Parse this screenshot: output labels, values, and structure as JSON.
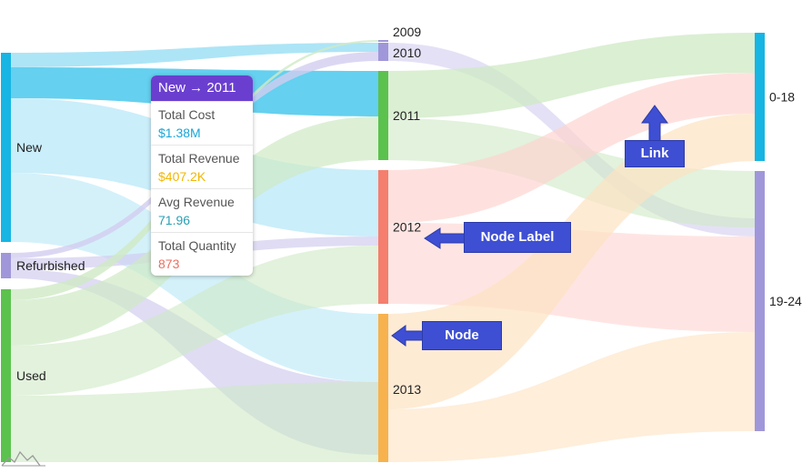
{
  "diagram": {
    "type": "sankey",
    "columns": [
      [
        "New",
        "Refurbished",
        "Used"
      ],
      [
        "2009",
        "2010",
        "2011",
        "2012",
        "2013"
      ],
      [
        "0-18",
        "19-24"
      ]
    ],
    "nodes": [
      {
        "id": "new",
        "label": "New",
        "color": "#16b5e3"
      },
      {
        "id": "refurbished",
        "label": "Refurbished",
        "color": "#9f97d9"
      },
      {
        "id": "used",
        "label": "Used",
        "color": "#5bc24e"
      },
      {
        "id": "y2009",
        "label": "2009",
        "color": "#9f97d9"
      },
      {
        "id": "y2010",
        "label": "2010",
        "color": "#9f97d9"
      },
      {
        "id": "y2011",
        "label": "2011",
        "color": "#5bc24e"
      },
      {
        "id": "y2012",
        "label": "2012",
        "color": "#f57e6e"
      },
      {
        "id": "y2013",
        "label": "2013",
        "color": "#f7b24d"
      },
      {
        "id": "a0_18",
        "label": "0-18",
        "color": "#16b5e3"
      },
      {
        "id": "a19_24",
        "label": "19-24",
        "color": "#9f97d9"
      }
    ],
    "link_colors": {
      "new": "#9fe0f5",
      "new_highlight": "#5dcdee",
      "refurbished": "#d2cdf0",
      "used": "#cfeac4",
      "y2011": "#cfeac4",
      "y2012": "#fdd4d0",
      "y2013": "#fde2c2"
    }
  },
  "tooltip": {
    "title": "New → 2011",
    "title_color": "#6a3fd0",
    "rows": [
      {
        "label": "Total Cost",
        "value": "$1.38M",
        "color": "#16a6d8"
      },
      {
        "label": "Total Revenue",
        "value": "$407.2K",
        "color": "#f2b705"
      },
      {
        "label": "Avg Revenue",
        "value": "71.96",
        "color": "#2b9fb3"
      },
      {
        "label": "Total Quantity",
        "value": "873",
        "color": "#f06c5d"
      }
    ]
  },
  "callouts": {
    "link": "Link",
    "node_label": "Node Label",
    "node": "Node",
    "color": "#3e4fd3"
  },
  "watermark": {
    "icon": "line-chart-logo-icon"
  }
}
